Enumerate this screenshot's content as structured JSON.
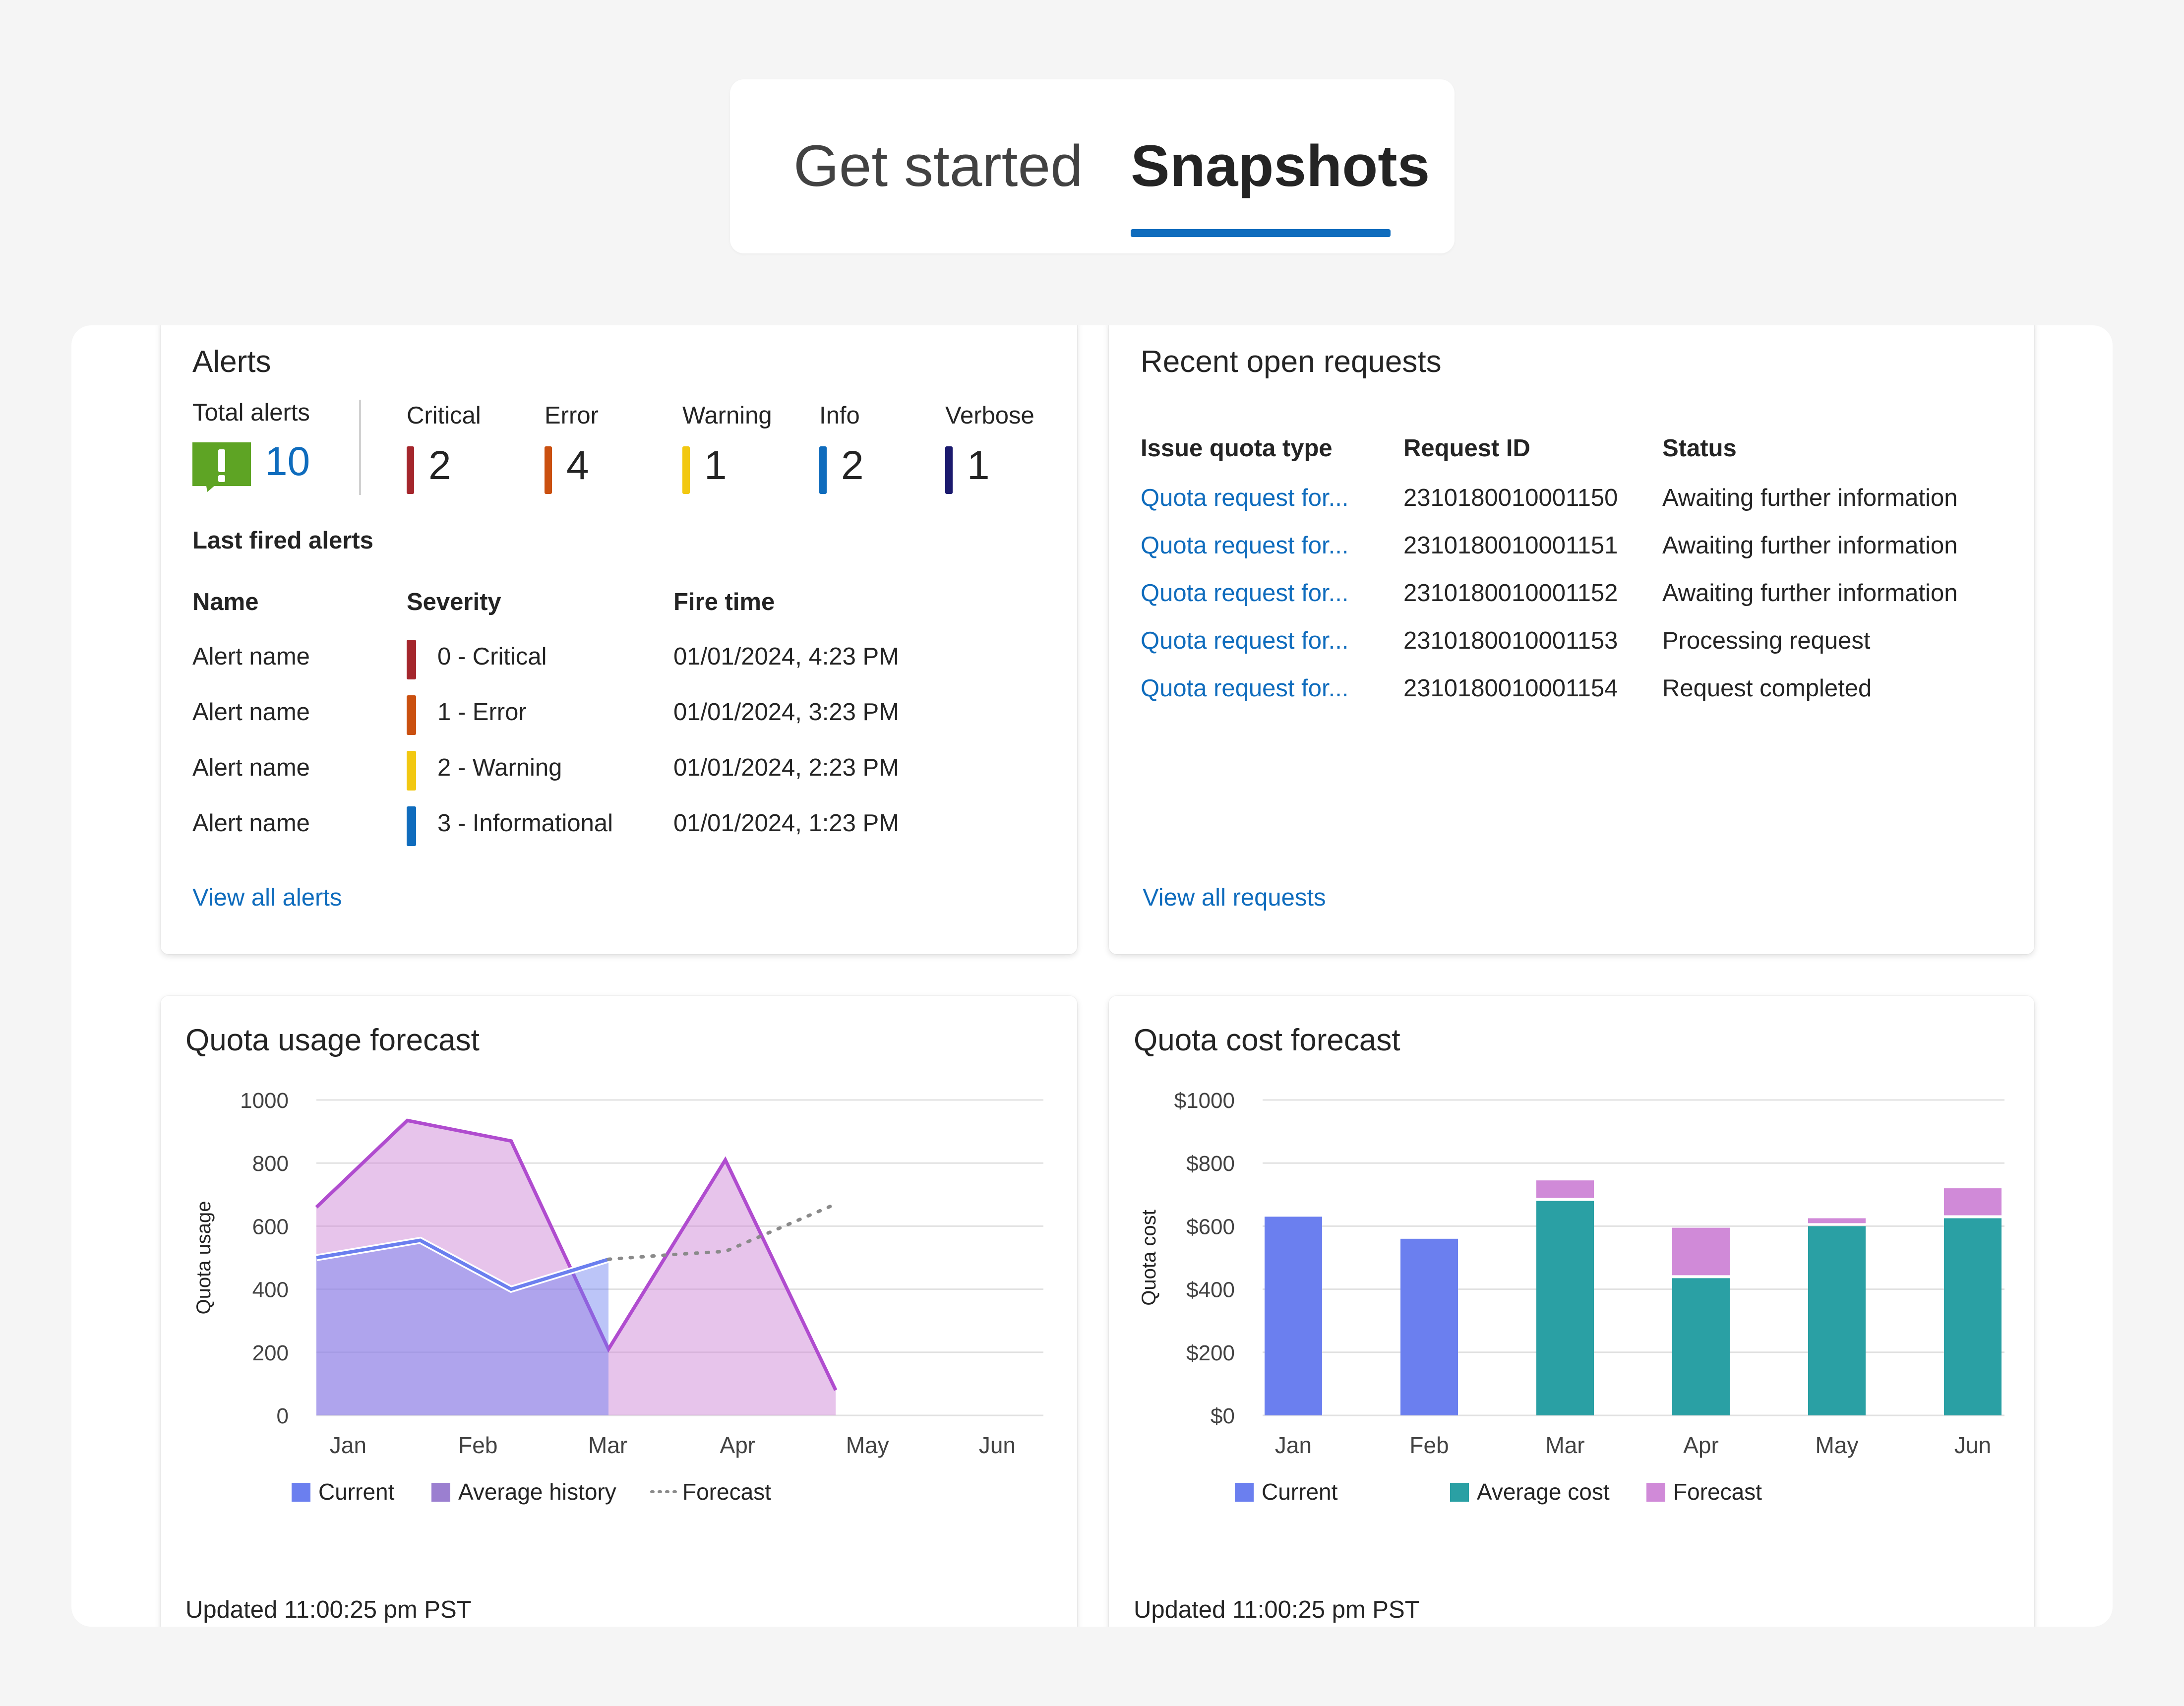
{
  "tabs": [
    {
      "label": "Get started",
      "selected": false
    },
    {
      "label": "Snapshots",
      "selected": true
    }
  ],
  "colors": {
    "critical": "#a4262c",
    "error": "#ca5010",
    "warning": "#f2c811",
    "info": "#0f6cbd",
    "verbose": "#1b1a6e",
    "link": "#0f6cbd",
    "current": "#6b7fef",
    "average": "#2aa0a4",
    "forecast": "#d08ad8",
    "history_line": "#b04ccf"
  },
  "alerts": {
    "title": "Alerts",
    "total_label": "Total alerts",
    "total_value": "10",
    "total_icon": "alert-exclamation-icon",
    "severity_counts": [
      {
        "label": "Critical",
        "count": "2"
      },
      {
        "label": "Error",
        "count": "4"
      },
      {
        "label": "Warning",
        "count": "1"
      },
      {
        "label": "Info",
        "count": "2"
      },
      {
        "label": "Verbose",
        "count": "1"
      }
    ],
    "last_fired_title": "Last fired alerts",
    "columns": [
      "Name",
      "Severity",
      "Fire time"
    ],
    "rows": [
      {
        "name": "Alert name",
        "severity": "0 - Critical",
        "time": "01/01/2024, 4:23 PM"
      },
      {
        "name": "Alert name",
        "severity": "1 - Error",
        "time": "01/01/2024, 3:23 PM"
      },
      {
        "name": "Alert name",
        "severity": "2 - Warning",
        "time": "01/01/2024, 2:23 PM"
      },
      {
        "name": "Alert name",
        "severity": "3 - Informational",
        "time": "01/01/2024, 1:23 PM"
      }
    ],
    "view_all": "View all alerts"
  },
  "requests": {
    "title": "Recent open requests",
    "columns": [
      "Issue quota type",
      "Request ID",
      "Status"
    ],
    "rows": [
      {
        "type": "Quota request for...",
        "id": "2310180010001150",
        "status": "Awaiting further information"
      },
      {
        "type": "Quota request for...",
        "id": "2310180010001151",
        "status": "Awaiting further information"
      },
      {
        "type": "Quota request for...",
        "id": "2310180010001152",
        "status": "Awaiting further information"
      },
      {
        "type": "Quota request for...",
        "id": "2310180010001153",
        "status": "Processing request"
      },
      {
        "type": "Quota request for...",
        "id": "2310180010001154",
        "status": "Request completed"
      }
    ],
    "view_all": "View all requests"
  },
  "usage_forecast": {
    "title": "Quota usage forecast",
    "updated": "Updated 11:00:25 pm PST",
    "legend": [
      "Current",
      "Average history",
      "Forecast"
    ]
  },
  "cost_forecast": {
    "title": "Quota cost forecast",
    "updated": "Updated 11:00:25 pm PST",
    "legend": [
      "Current",
      "Average cost",
      "Forecast"
    ]
  },
  "chart_data": [
    {
      "type": "area",
      "title": "Quota usage forecast",
      "xlabel": "",
      "ylabel": "Quota usage",
      "categories": [
        "Jan",
        "Feb",
        "Mar",
        "Apr",
        "May",
        "Jun"
      ],
      "ylim": [
        0,
        1000
      ],
      "yticks": [
        "0",
        "200",
        "400",
        "600",
        "800",
        "1000"
      ],
      "grid": true,
      "legend_position": "bottom",
      "series": [
        {
          "name": "Average history",
          "kind": "area",
          "x": [
            0,
            0.7,
            1.5,
            2.25,
            3.15,
            4
          ],
          "y": [
            660,
            935,
            870,
            210,
            810,
            80
          ]
        },
        {
          "name": "Current",
          "kind": "area",
          "x": [
            0,
            0.8,
            1.5,
            2.25
          ],
          "y": [
            500,
            555,
            400,
            495
          ]
        },
        {
          "name": "Forecast",
          "kind": "dotted-line",
          "x": [
            2.25,
            2.75,
            3.15,
            4.0
          ],
          "y": [
            495,
            510,
            520,
            670
          ]
        }
      ]
    },
    {
      "type": "bar",
      "title": "Quota cost forecast",
      "xlabel": "",
      "ylabel": "Quota cost",
      "categories": [
        "Jan",
        "Feb",
        "Mar",
        "Apr",
        "May",
        "Jun"
      ],
      "ylim": [
        0,
        1000
      ],
      "yticks": [
        "$0",
        "$200",
        "$400",
        "$600",
        "$800",
        "$1000"
      ],
      "grid": true,
      "legend_position": "bottom",
      "stacked": true,
      "series": [
        {
          "name": "Current",
          "values": [
            630,
            560,
            0,
            0,
            0,
            0
          ]
        },
        {
          "name": "Average cost",
          "values": [
            0,
            0,
            680,
            435,
            600,
            625
          ]
        },
        {
          "name": "Forecast",
          "values": [
            0,
            0,
            65,
            160,
            25,
            95
          ]
        }
      ]
    }
  ]
}
